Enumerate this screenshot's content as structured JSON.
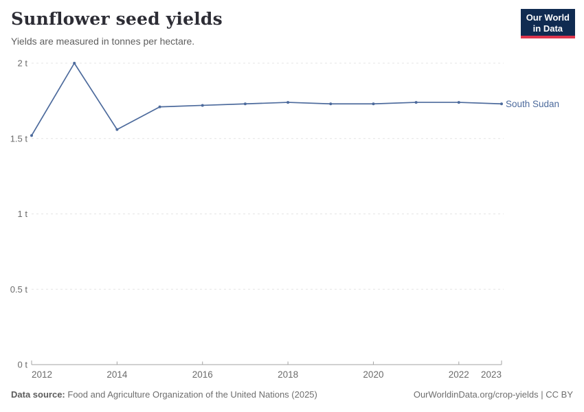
{
  "header": {
    "title": "Sunflower seed yields",
    "subtitle": "Yields are measured in tonnes per hectare.",
    "logo": {
      "line1": "Our World",
      "line2": "in Data",
      "background_color": "#102b51",
      "accent_color": "#de354c"
    }
  },
  "chart_data": {
    "type": "line",
    "title": "Sunflower seed yields",
    "subtitle": "Yields are measured in tonnes per hectare.",
    "unit": "tonnes per hectare",
    "x": [
      2012,
      2013,
      2014,
      2015,
      2016,
      2017,
      2018,
      2019,
      2020,
      2021,
      2022,
      2023
    ],
    "series": [
      {
        "name": "South Sudan",
        "color": "#4C6A9C",
        "values": [
          1.52,
          2.0,
          1.56,
          1.71,
          1.72,
          1.73,
          1.74,
          1.73,
          1.73,
          1.74,
          1.74,
          1.73
        ]
      }
    ],
    "xlim": [
      2012,
      2023
    ],
    "ylim": [
      0,
      2
    ],
    "x_ticks": [
      2012,
      2014,
      2016,
      2018,
      2020,
      2022,
      2023
    ],
    "y_ticks": [
      {
        "value": 0,
        "label": "0 t"
      },
      {
        "value": 0.5,
        "label": "0.5 t"
      },
      {
        "value": 1,
        "label": "1 t"
      },
      {
        "value": 1.5,
        "label": "1.5 t"
      },
      {
        "value": 2,
        "label": "2 t"
      }
    ],
    "grid": "horizontal-dashed",
    "legend_position": "end-of-line"
  },
  "footer": {
    "source_label": "Data source:",
    "source_text": "Food and Agriculture Organization of the United Nations (2025)",
    "rights": "OurWorldinData.org/crop-yields | CC BY"
  },
  "colors": {
    "series_blue": "#4C6A9C",
    "gridline": "#e4e4e4",
    "axis": "#a3a3a3",
    "tick_label": "#6b6b6b"
  }
}
